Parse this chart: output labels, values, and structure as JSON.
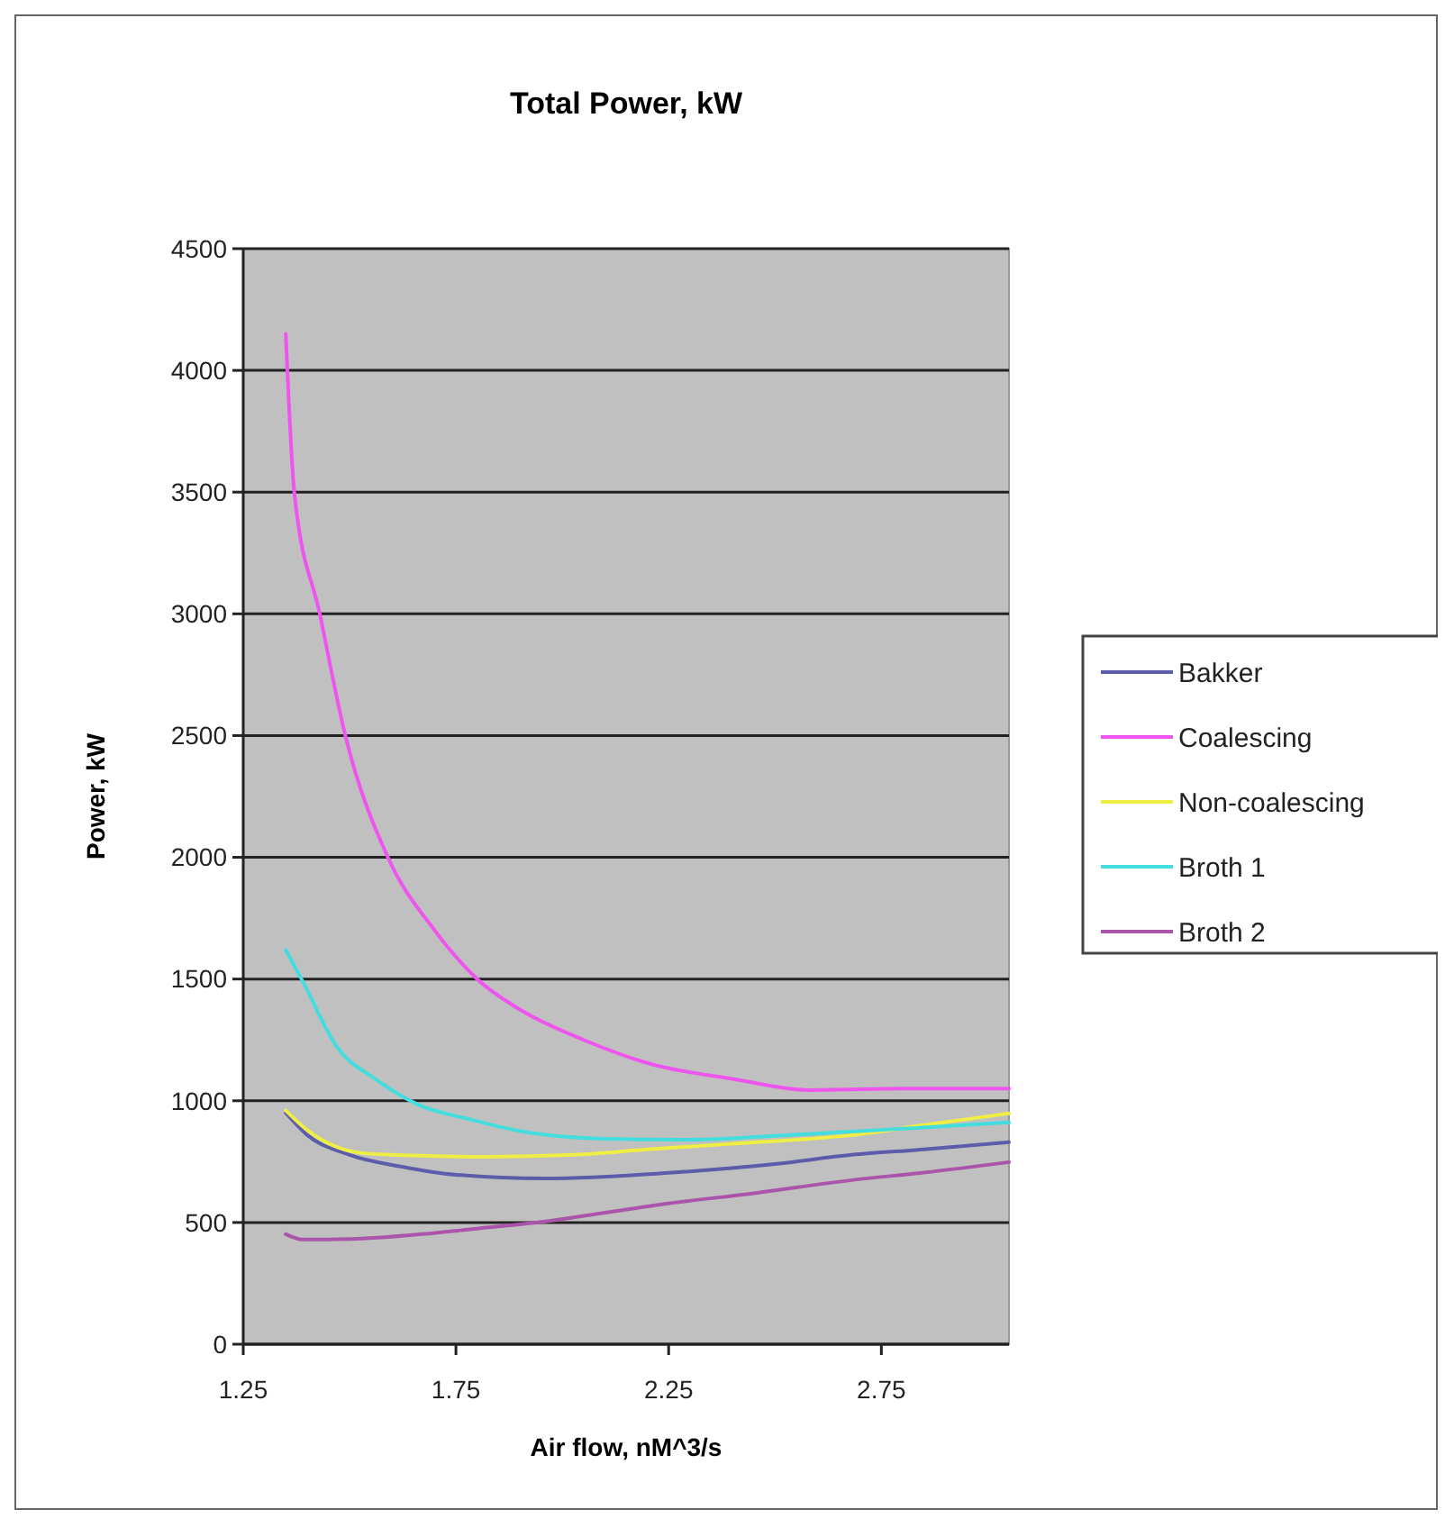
{
  "chart_data": {
    "type": "line",
    "title": "Total Power, kW",
    "xlabel": "Air flow, nM^3/s",
    "ylabel": "Power, kW",
    "xlim": [
      1.25,
      3.05
    ],
    "xticks": [
      1.25,
      1.75,
      2.25,
      2.75
    ],
    "ylim": [
      0,
      4500
    ],
    "yticks": [
      0,
      500,
      1000,
      1500,
      2000,
      2500,
      3000,
      3500,
      4000,
      4500
    ],
    "grid": "y",
    "legend": "right",
    "marker": "none",
    "line_style": "solid",
    "series": [
      {
        "name": "Bakker",
        "color": "#5c5caa",
        "x": [
          1.35,
          1.4,
          1.5,
          1.62,
          1.75,
          1.96,
          2.25,
          2.5,
          2.68,
          2.85,
          3.05
        ],
        "values": [
          950,
          860,
          778,
          730,
          696,
          681,
          704,
          740,
          778,
          800,
          830
        ]
      },
      {
        "name": "Coalescing",
        "color": "#ee55ee",
        "x": [
          1.35,
          1.37,
          1.43,
          1.49,
          1.59,
          1.7,
          1.8,
          1.905,
          2.05,
          2.21,
          2.4,
          2.58,
          2.8,
          3.05
        ],
        "values": [
          4150,
          3500,
          3000,
          2500,
          2000,
          1700,
          1500,
          1370,
          1250,
          1150,
          1090,
          1044,
          1050,
          1050
        ]
      },
      {
        "name": "Non-coalescing",
        "color": "#eeee44",
        "x": [
          1.35,
          1.4,
          1.53,
          1.65,
          1.82,
          2.03,
          2.2,
          2.39,
          2.68,
          2.85,
          3.05
        ],
        "values": [
          960,
          880,
          785,
          775,
          770,
          778,
          800,
          822,
          859,
          900,
          948
        ]
      },
      {
        "name": "Broth 1",
        "color": "#44dddd",
        "x": [
          1.35,
          1.39,
          1.47,
          1.56,
          1.66,
          1.78,
          1.905,
          2.1,
          2.3,
          2.53,
          2.8,
          3.05
        ],
        "values": [
          1620,
          1490,
          1222,
          1090,
          985,
          925,
          874,
          844,
          840,
          859,
          885,
          911
        ]
      },
      {
        "name": "Broth 2",
        "color": "#aa55aa",
        "x": [
          1.35,
          1.39,
          1.5,
          1.67,
          1.8,
          1.96,
          2.1,
          2.25,
          2.45,
          2.68,
          2.85,
          3.05
        ],
        "values": [
          452,
          430,
          432,
          452,
          475,
          504,
          540,
          578,
          620,
          674,
          705,
          748
        ]
      }
    ]
  }
}
